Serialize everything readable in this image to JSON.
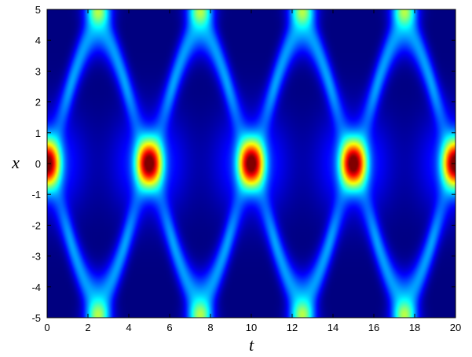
{
  "chart_data": {
    "type": "heatmap",
    "title": "",
    "xlabel": "t",
    "ylabel": "x",
    "xlim": [
      0,
      20
    ],
    "ylim": [
      -5,
      5
    ],
    "x_ticks": [
      0,
      2,
      4,
      6,
      8,
      10,
      12,
      14,
      16,
      18,
      20
    ],
    "y_ticks": [
      -5,
      -4,
      -3,
      -2,
      -1,
      0,
      1,
      2,
      3,
      4,
      5
    ],
    "x_tick_labels": [
      "0",
      "2",
      "4",
      "6",
      "8",
      "10",
      "12",
      "14",
      "16",
      "18",
      "20"
    ],
    "y_tick_labels": [
      "-5",
      "-4",
      "-3",
      "-2",
      "-1",
      "0",
      "1",
      "2",
      "3",
      "4",
      "5"
    ],
    "colormap": "jet",
    "value_range": [
      0,
      1
    ],
    "grid": false,
    "legend": false,
    "peaks": [
      {
        "t": 0,
        "x": 0,
        "value": 1.0
      },
      {
        "t": 5,
        "x": 0,
        "value": 1.0
      },
      {
        "t": 10,
        "x": 0,
        "value": 1.0
      },
      {
        "t": 15,
        "x": 0,
        "value": 1.0
      },
      {
        "t": 20,
        "x": 0,
        "value": 1.0
      },
      {
        "t": 2.5,
        "x": 5,
        "value": 0.45
      },
      {
        "t": 7.5,
        "x": 5,
        "value": 0.45
      },
      {
        "t": 12.5,
        "x": 5,
        "value": 0.45
      },
      {
        "t": 17.5,
        "x": 5,
        "value": 0.45
      },
      {
        "t": 2.5,
        "x": -5,
        "value": 0.45
      },
      {
        "t": 7.5,
        "x": -5,
        "value": 0.45
      },
      {
        "t": 12.5,
        "x": -5,
        "value": 0.45
      },
      {
        "t": 17.5,
        "x": -5,
        "value": 0.45
      }
    ],
    "period_t": 5
  }
}
